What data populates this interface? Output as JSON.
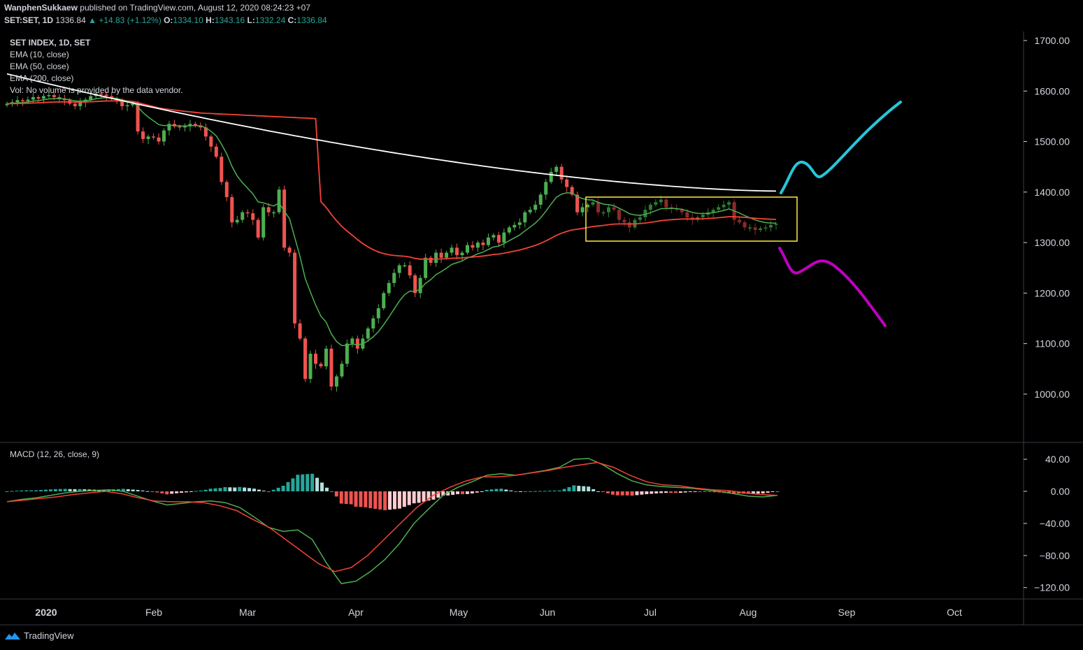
{
  "header": {
    "author": "WanphenSukkaew",
    "published_text": "published on TradingView.com, August 12, 2020 08:24:23 +07",
    "symbol": "SET:SET, 1D",
    "last": "1336.84",
    "change": "▲ +14.83 (+1.12%)",
    "o_label": "O:",
    "o": "1334.10",
    "h_label": "H:",
    "h": "1343.16",
    "l_label": "L:",
    "l": "1332.24",
    "c_label": "C:",
    "c": "1336.84"
  },
  "legend": {
    "title": "SET INDEX, 1D, SET",
    "ema10": "EMA (10, close)",
    "ema50": "EMA (50, close)",
    "ema200": "EMA (200, close)",
    "vol": "Vol: No volume is provided by the data vendor.",
    "macd": "MACD (12, 26, close, 9)"
  },
  "footer": {
    "brand": "TradingView"
  },
  "colors": {
    "up": "#26a69a",
    "down": "#ef5350",
    "candle_up": "#4caf50",
    "ema10": "#4caf50",
    "ema50": "#f44336",
    "ema200": "#ffffff",
    "box": "#ffeb3b",
    "bull_proj": "#26c6da",
    "bear_proj": "#c000c0",
    "macd_line": "#4caf50",
    "signal_line": "#f44336"
  },
  "chart_data": [
    {
      "type": "candlestick",
      "title": "SET INDEX, 1D, SET",
      "ylim": [
        900,
        1720
      ],
      "y_ticks": [
        "1700.00",
        "1600.00",
        "1500.00",
        "1400.00",
        "1300.00",
        "1200.00",
        "1100.00",
        "1000.00"
      ],
      "x_ticks": [
        "2020",
        "Feb",
        "Mar",
        "Apr",
        "May",
        "Jun",
        "Jul",
        "Aug",
        "Sep",
        "Oct"
      ],
      "closes": [
        1575,
        1578,
        1582,
        1580,
        1583,
        1588,
        1585,
        1590,
        1592,
        1588,
        1585,
        1582,
        1575,
        1570,
        1578,
        1583,
        1590,
        1595,
        1593,
        1590,
        1585,
        1580,
        1570,
        1572,
        1575,
        1520,
        1505,
        1510,
        1508,
        1500,
        1522,
        1535,
        1530,
        1528,
        1530,
        1535,
        1532,
        1528,
        1510,
        1490,
        1470,
        1420,
        1390,
        1340,
        1345,
        1360,
        1358,
        1345,
        1310,
        1370,
        1360,
        1360,
        1405,
        1290,
        1280,
        1140,
        1110,
        1030,
        1080,
        1060,
        1055,
        1090,
        1015,
        1035,
        1060,
        1100,
        1110,
        1090,
        1110,
        1130,
        1150,
        1170,
        1200,
        1220,
        1240,
        1255,
        1255,
        1235,
        1200,
        1230,
        1270,
        1260,
        1280,
        1270,
        1280,
        1290,
        1275,
        1280,
        1295,
        1290,
        1300,
        1295,
        1310,
        1315,
        1300,
        1320,
        1330,
        1335,
        1340,
        1360,
        1365,
        1375,
        1395,
        1420,
        1440,
        1450,
        1425,
        1410,
        1395,
        1360,
        1370,
        1375,
        1380,
        1360,
        1360,
        1370,
        1365,
        1345,
        1340,
        1330,
        1345,
        1350,
        1365,
        1375,
        1380,
        1385,
        1370,
        1368,
        1365,
        1360,
        1350,
        1345,
        1350,
        1355,
        1360,
        1365,
        1370,
        1375,
        1380,
        1345,
        1340,
        1330,
        1330,
        1325,
        1328,
        1330,
        1335,
        1337
      ],
      "ema200_endpoints": [
        1634,
        1402
      ],
      "projection_bullish": "up to ~1575 by mid-Sep",
      "projection_bearish": "down to ~1130 by mid-Sep"
    },
    {
      "type": "line",
      "title": "MACD (12, 26, close, 9)",
      "ylim": [
        -135,
        55
      ],
      "y_ticks": [
        "40.00",
        "0.00",
        "−40.00",
        "−80.00",
        "−120.00"
      ],
      "macd": [
        -13,
        -10,
        -8,
        -5,
        -2,
        0,
        1,
        2,
        0,
        -6,
        -12,
        -17,
        -15,
        -13,
        -12,
        -14,
        -20,
        -32,
        -45,
        -50,
        -48,
        -60,
        -90,
        -115,
        -112,
        -100,
        -85,
        -65,
        -40,
        -22,
        -5,
        5,
        12,
        20,
        22,
        20,
        23,
        26,
        30,
        40,
        41,
        33,
        22,
        13,
        8,
        6,
        5,
        4,
        2,
        0,
        -3,
        -6,
        -7,
        -5
      ],
      "signal": [
        -13,
        -11,
        -9,
        -7,
        -4,
        -2,
        0,
        -3,
        -8,
        -12,
        -13,
        -13,
        -14,
        -18,
        -24,
        -35,
        -45,
        -60,
        -75,
        -90,
        -100,
        -95,
        -80,
        -60,
        -40,
        -20,
        -5,
        5,
        13,
        18,
        18,
        20,
        23,
        26,
        30,
        33,
        36,
        30,
        20,
        12,
        8,
        7,
        4,
        2,
        1,
        -2,
        -4,
        -5
      ]
    }
  ]
}
